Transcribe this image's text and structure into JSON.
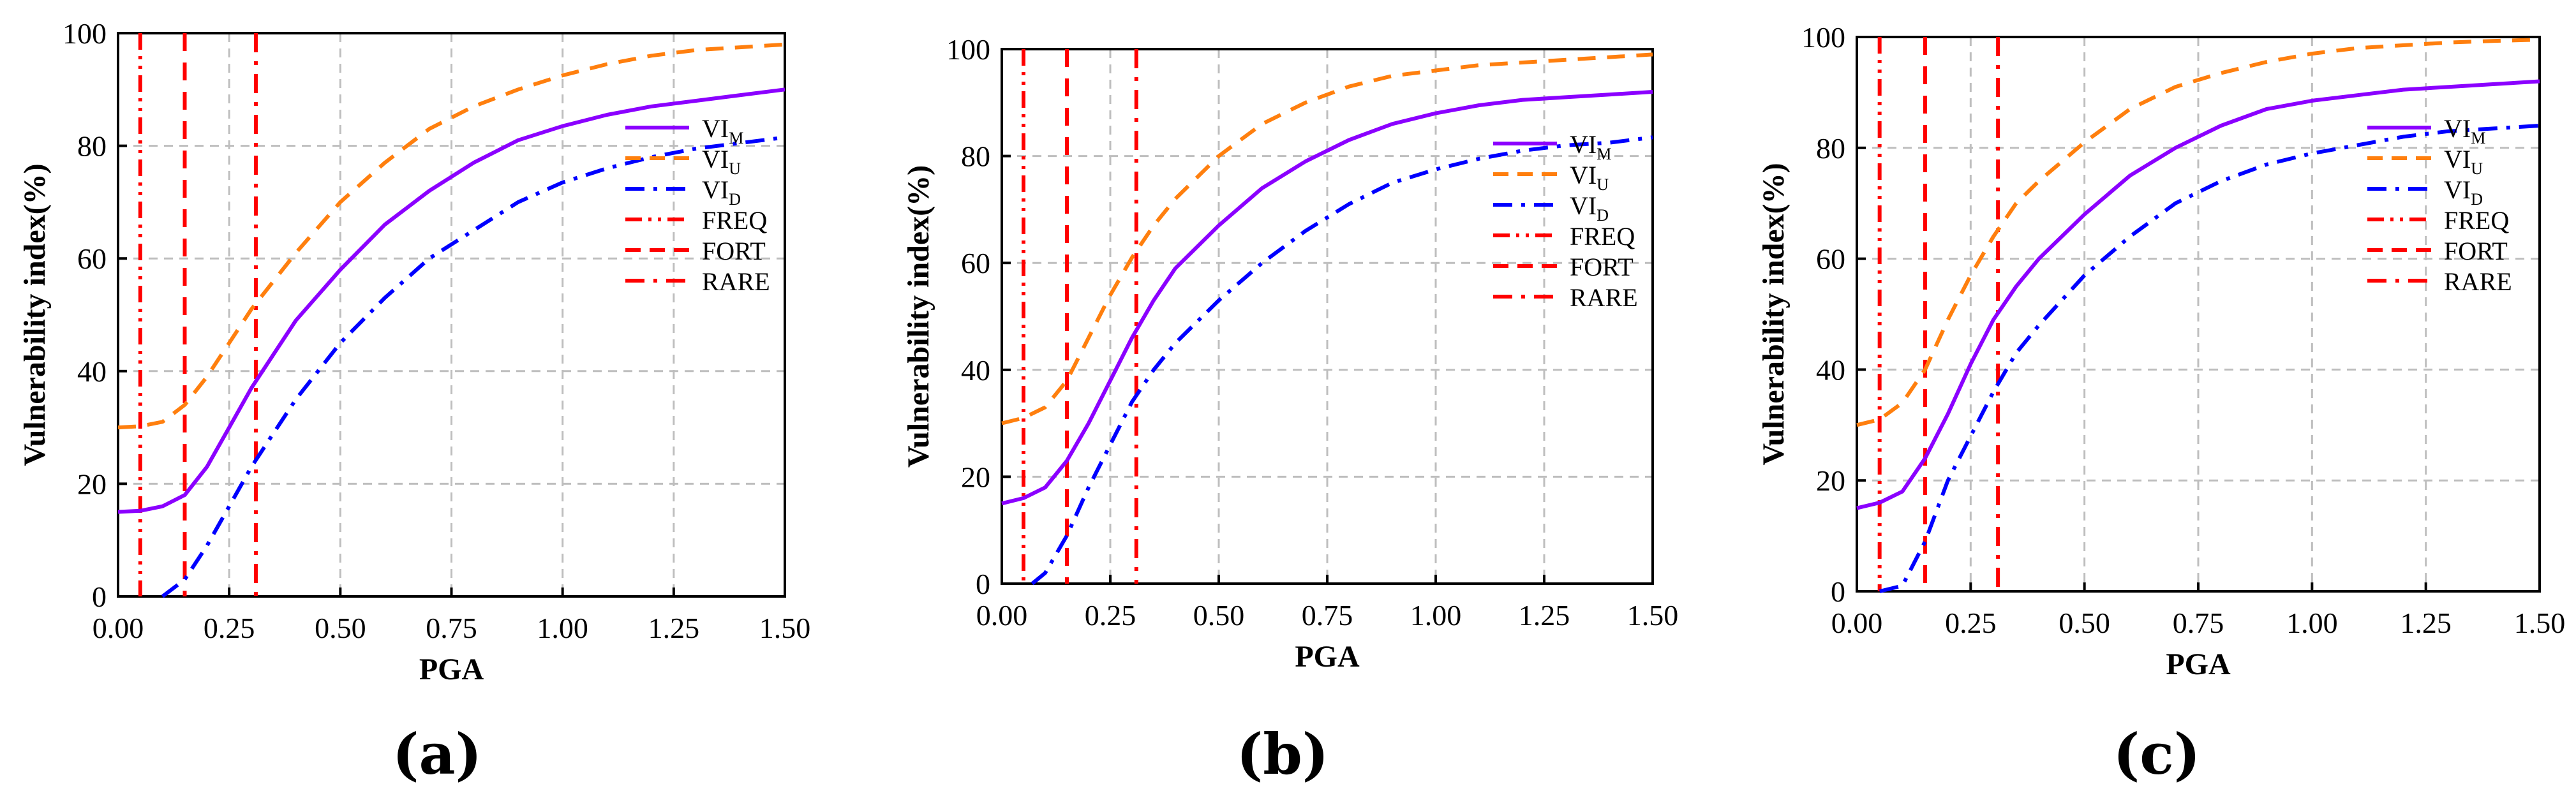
{
  "colors": {
    "VI_M": "#8B00FF",
    "VI_U": "#FF7F0E",
    "VI_D": "#0000FF",
    "lines": "#FF0000",
    "grid": "#BEBEBE",
    "axis": "#000000"
  },
  "chart_data": [
    {
      "type": "line",
      "panel_label": "(a)",
      "xlabel": "PGA",
      "ylabel": "Vulnerability index(%)",
      "xlim": [
        0,
        1.5
      ],
      "ylim": [
        0,
        100
      ],
      "xticks": [
        "0.00",
        "0.25",
        "0.50",
        "0.75",
        "1.00",
        "1.25",
        "1.50"
      ],
      "yticks": [
        "0",
        "20",
        "40",
        "60",
        "80",
        "100"
      ],
      "series": [
        {
          "name": "VI_M",
          "display": "VI",
          "sub": "M",
          "style": "solid",
          "x": [
            0,
            0.05,
            0.1,
            0.15,
            0.2,
            0.25,
            0.3,
            0.35,
            0.4,
            0.5,
            0.6,
            0.7,
            0.8,
            0.9,
            1.0,
            1.1,
            1.2,
            1.3,
            1.4,
            1.5
          ],
          "y": [
            15,
            15.2,
            16,
            18,
            23,
            30,
            37,
            43,
            49,
            58,
            66,
            72,
            77,
            81,
            83.5,
            85.5,
            87,
            88,
            89,
            90
          ]
        },
        {
          "name": "VI_U",
          "display": "VI",
          "sub": "U",
          "style": "dashed",
          "x": [
            0,
            0.05,
            0.1,
            0.15,
            0.2,
            0.25,
            0.3,
            0.35,
            0.4,
            0.5,
            0.6,
            0.7,
            0.8,
            0.9,
            1.0,
            1.1,
            1.2,
            1.3,
            1.4,
            1.5
          ],
          "y": [
            30,
            30.2,
            31,
            34,
            39,
            45,
            51,
            56,
            61,
            70,
            77,
            83,
            87,
            90,
            92.5,
            94.5,
            96,
            97,
            97.5,
            98
          ]
        },
        {
          "name": "VI_D",
          "display": "VI",
          "sub": "D",
          "style": "dashdot",
          "x": [
            0.1,
            0.15,
            0.2,
            0.25,
            0.3,
            0.35,
            0.4,
            0.5,
            0.6,
            0.7,
            0.8,
            0.9,
            1.0,
            1.1,
            1.2,
            1.3,
            1.4,
            1.5
          ],
          "y": [
            0,
            3,
            9,
            16,
            23,
            29,
            35,
            45,
            53,
            60,
            65,
            70,
            73.5,
            76,
            78,
            79.5,
            80.5,
            81.5
          ]
        }
      ],
      "vlines": [
        {
          "name": "FREQ",
          "x": 0.05,
          "style": "dashdotdot"
        },
        {
          "name": "FORT",
          "x": 0.15,
          "style": "dashed"
        },
        {
          "name": "RARE",
          "x": 0.31,
          "style": "dashdot"
        }
      ]
    },
    {
      "type": "line",
      "panel_label": "(b)",
      "xlabel": "PGA",
      "ylabel": "Vulnerability index(%)",
      "xlim": [
        0,
        1.5
      ],
      "ylim": [
        0,
        100
      ],
      "xticks": [
        "0.00",
        "0.25",
        "0.50",
        "0.75",
        "1.00",
        "1.25",
        "1.50"
      ],
      "yticks": [
        "0",
        "20",
        "40",
        "60",
        "80",
        "100"
      ],
      "series": [
        {
          "name": "VI_M",
          "display": "VI",
          "sub": "M",
          "style": "solid",
          "x": [
            0,
            0.05,
            0.1,
            0.15,
            0.2,
            0.25,
            0.3,
            0.35,
            0.4,
            0.5,
            0.6,
            0.7,
            0.8,
            0.9,
            1.0,
            1.1,
            1.2,
            1.3,
            1.4,
            1.5
          ],
          "y": [
            15,
            16,
            18,
            23,
            30,
            38,
            46,
            53,
            59,
            67,
            74,
            79,
            83,
            86,
            88,
            89.5,
            90.5,
            91,
            91.5,
            92
          ]
        },
        {
          "name": "VI_U",
          "display": "VI",
          "sub": "U",
          "style": "dashed",
          "x": [
            0,
            0.05,
            0.1,
            0.15,
            0.2,
            0.25,
            0.3,
            0.35,
            0.4,
            0.5,
            0.6,
            0.7,
            0.8,
            0.9,
            1.0,
            1.1,
            1.2,
            1.3,
            1.4,
            1.5
          ],
          "y": [
            30,
            31,
            33,
            38,
            46,
            54,
            61,
            67,
            72,
            80,
            86,
            90,
            93,
            95,
            96,
            97,
            97.5,
            98,
            98.5,
            99
          ]
        },
        {
          "name": "VI_D",
          "display": "VI",
          "sub": "D",
          "style": "dashdot",
          "x": [
            0.07,
            0.1,
            0.15,
            0.2,
            0.25,
            0.3,
            0.35,
            0.4,
            0.5,
            0.6,
            0.7,
            0.8,
            0.9,
            1.0,
            1.1,
            1.2,
            1.3,
            1.4,
            1.5
          ],
          "y": [
            0,
            2,
            9,
            18,
            26,
            34,
            40,
            45,
            53,
            60,
            66,
            71,
            75,
            77.5,
            79.5,
            81,
            82,
            82.5,
            83.5
          ]
        }
      ],
      "vlines": [
        {
          "name": "FREQ",
          "x": 0.05,
          "style": "dashdotdot"
        },
        {
          "name": "FORT",
          "x": 0.15,
          "style": "dashed"
        },
        {
          "name": "RARE",
          "x": 0.31,
          "style": "dashdot"
        }
      ]
    },
    {
      "type": "line",
      "panel_label": "(c)",
      "xlabel": "PGA",
      "ylabel": "Vulnerability index(%)",
      "xlim": [
        0,
        1.5
      ],
      "ylim": [
        0,
        100
      ],
      "xticks": [
        "0.00",
        "0.25",
        "0.50",
        "0.75",
        "1.00",
        "1.25",
        "1.50"
      ],
      "yticks": [
        "0",
        "20",
        "40",
        "60",
        "80",
        "100"
      ],
      "series": [
        {
          "name": "VI_M",
          "display": "VI",
          "sub": "M",
          "style": "solid",
          "x": [
            0,
            0.05,
            0.1,
            0.15,
            0.2,
            0.25,
            0.3,
            0.35,
            0.4,
            0.5,
            0.6,
            0.7,
            0.8,
            0.9,
            1.0,
            1.1,
            1.2,
            1.3,
            1.4,
            1.5
          ],
          "y": [
            15,
            16,
            18,
            24,
            32,
            41,
            49,
            55,
            60,
            68,
            75,
            80,
            84,
            87,
            88.5,
            89.5,
            90.5,
            91,
            91.5,
            92
          ]
        },
        {
          "name": "VI_U",
          "display": "VI",
          "sub": "U",
          "style": "dashed",
          "x": [
            0,
            0.05,
            0.1,
            0.15,
            0.2,
            0.25,
            0.3,
            0.35,
            0.4,
            0.5,
            0.6,
            0.7,
            0.8,
            0.9,
            1.0,
            1.1,
            1.2,
            1.3,
            1.4,
            1.5
          ],
          "y": [
            30,
            31,
            34,
            40,
            49,
            57,
            64,
            70,
            74,
            81,
            87,
            91,
            93.5,
            95.5,
            97,
            98,
            98.5,
            99,
            99.3,
            99.5
          ]
        },
        {
          "name": "VI_D",
          "display": "VI",
          "sub": "D",
          "style": "dashdot",
          "x": [
            0.05,
            0.1,
            0.15,
            0.2,
            0.25,
            0.3,
            0.35,
            0.4,
            0.5,
            0.6,
            0.7,
            0.8,
            0.9,
            1.0,
            1.1,
            1.2,
            1.3,
            1.4,
            1.5
          ],
          "y": [
            0,
            1,
            9,
            20,
            28,
            36,
            43,
            48,
            57,
            64,
            70,
            74,
            77,
            79,
            80.5,
            82,
            83,
            83.5,
            84
          ]
        }
      ],
      "vlines": [
        {
          "name": "FREQ",
          "x": 0.05,
          "style": "dashdotdot"
        },
        {
          "name": "FORT",
          "x": 0.15,
          "style": "dashed"
        },
        {
          "name": "RARE",
          "x": 0.31,
          "style": "dashdot"
        }
      ]
    }
  ]
}
